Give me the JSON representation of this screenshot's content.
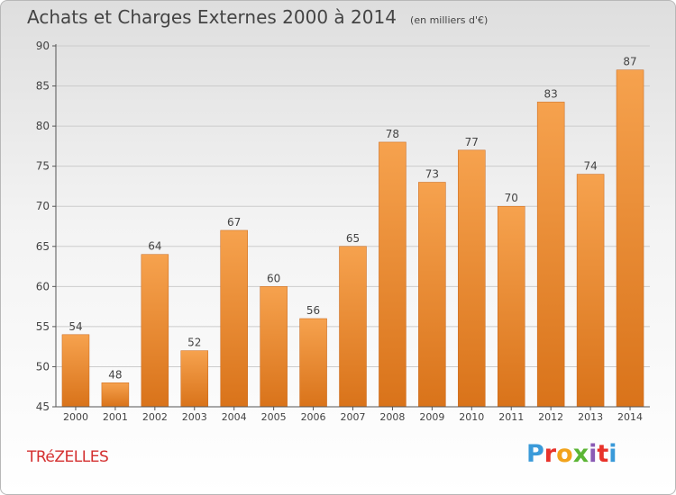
{
  "title": "Achats et Charges Externes 2000 à 2014",
  "unit_note": "(en milliers d'€)",
  "location": "TRéZELLES",
  "brand": "Proxiti",
  "colors": {
    "bar_top": "#f6a24e",
    "bar_bottom": "#d9731a",
    "bar_edge": "#c8661a",
    "grid": "#cccccc",
    "axis": "#555555",
    "text": "#444444",
    "location": "#d43030"
  },
  "brand_colors": [
    "#3a9ad9",
    "#e8322a",
    "#f2a31b",
    "#5bb534",
    "#8a5bb5",
    "#e8322a",
    "#3a9ad9"
  ],
  "chart_data": {
    "type": "bar",
    "categories": [
      "2000",
      "2001",
      "2002",
      "2003",
      "2004",
      "2005",
      "2006",
      "2007",
      "2008",
      "2009",
      "2010",
      "2011",
      "2012",
      "2013",
      "2014"
    ],
    "values": [
      54,
      48,
      64,
      52,
      67,
      60,
      56,
      65,
      78,
      73,
      77,
      70,
      83,
      74,
      87
    ],
    "title": "Achats et Charges Externes 2000 à 2014",
    "subtitle": "(en milliers d'€)",
    "xlabel": "",
    "ylabel": "",
    "ylim": [
      45,
      90
    ],
    "yticks": [
      45,
      50,
      55,
      60,
      65,
      70,
      75,
      80,
      85,
      90
    ],
    "grid": true,
    "data_labels": true
  }
}
